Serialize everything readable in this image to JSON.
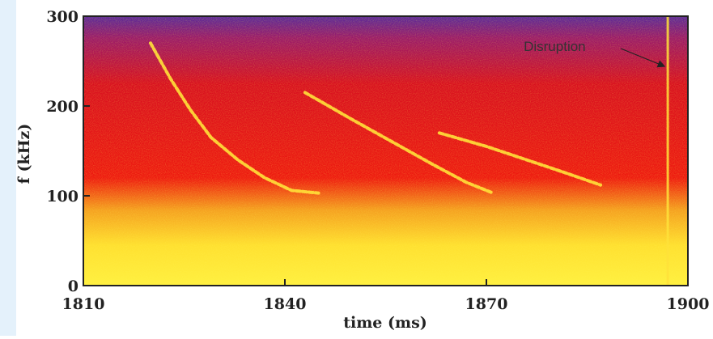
{
  "chart_data": {
    "type": "spectrogram",
    "xlabel": "time (ms)",
    "ylabel": "f (kHz)",
    "xlim": [
      1810,
      1900
    ],
    "xticks": [
      1810,
      1840,
      1870,
      1900
    ],
    "ylim": [
      0,
      300
    ],
    "yticks": [
      0,
      100,
      200,
      300
    ],
    "annotation": "Disruption",
    "disruption_x": 1897,
    "chirps": [
      {
        "x": [
          1820,
          1823,
          1826,
          1829,
          1833,
          1837,
          1841,
          1845
        ],
        "y": [
          270,
          230,
          195,
          165,
          140,
          120,
          106,
          103
        ]
      },
      {
        "x": [
          1843,
          1850,
          1856,
          1862,
          1867,
          1871
        ],
        "y": [
          215,
          185,
          160,
          135,
          115,
          103
        ]
      },
      {
        "x": [
          1863,
          1870,
          1876,
          1882,
          1887
        ],
        "y": [
          170,
          155,
          140,
          125,
          112
        ]
      }
    ],
    "color": "#ffe23a"
  }
}
